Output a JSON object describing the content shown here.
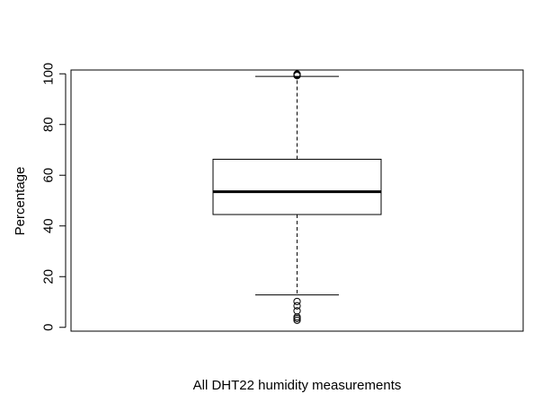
{
  "chart_data": {
    "type": "boxplot",
    "xlabel": "All DHT22 humidity measurements",
    "ylabel": "Percentage",
    "ylim": [
      -1.5,
      101.5
    ],
    "yticks": [
      0,
      20,
      40,
      60,
      80,
      100
    ],
    "ytick_labels": [
      "0",
      "20",
      "40",
      "60",
      "80",
      "100"
    ],
    "grid": false,
    "box": {
      "lower_whisker": 12.8,
      "q1": 44.5,
      "median": 53.5,
      "q3": 66.3,
      "upper_whisker": 99
    },
    "outliers": [
      2.8,
      3.5,
      4.1,
      6.5,
      8.5,
      10.2,
      99.3,
      99.6,
      99.9
    ]
  }
}
